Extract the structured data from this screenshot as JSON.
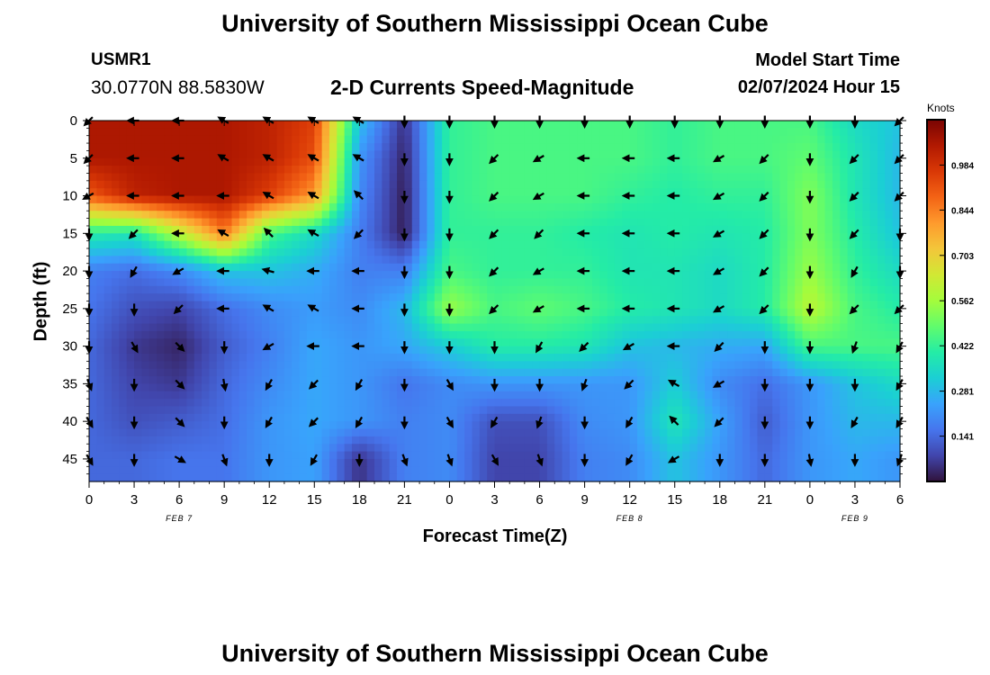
{
  "header": {
    "title": "University of Southern Mississippi Ocean Cube",
    "station_id": "USMR1",
    "station_coords": "30.0770N  88.5830W",
    "product_name": "2-D Currents Speed-Magnitude",
    "model_start_label": "Model Start Time",
    "model_start_value": "02/07/2024 Hour 15"
  },
  "footer": {
    "title_repeat": "University of Southern Mississippi Ocean Cube"
  },
  "chart_data": {
    "type": "heatmap",
    "title": "2-D Currents Speed-Magnitude",
    "xlabel": "Forecast Time(Z)",
    "ylabel": "Depth (ft)",
    "x_tick_labels": [
      "0",
      "3",
      "6",
      "9",
      "12",
      "15",
      "18",
      "21",
      "0",
      "3",
      "6",
      "9",
      "12",
      "15",
      "18",
      "21",
      "0",
      "3",
      "6"
    ],
    "x_range_hours": [
      0,
      54
    ],
    "date_labels": [
      {
        "label": "FEB 7",
        "hour": 6
      },
      {
        "label": "FEB 8",
        "hour": 36
      },
      {
        "label": "FEB 9",
        "hour": 51
      }
    ],
    "y_tick_labels": [
      "0",
      "5",
      "10",
      "15",
      "20",
      "25",
      "30",
      "35",
      "40",
      "45"
    ],
    "y_range_ft": [
      0,
      48
    ],
    "y_inverted": true,
    "colorbar": {
      "units": "Knots",
      "ticks": [
        "0.984",
        "0.844",
        "0.703",
        "0.562",
        "0.422",
        "0.281",
        "0.141"
      ],
      "range": [
        0,
        1.125
      ],
      "colors": [
        "#30123b",
        "#4145ab",
        "#4675ed",
        "#39a2fc",
        "#1bcfd4",
        "#24eca6",
        "#61fc6c",
        "#a4fc3c",
        "#d1e834",
        "#f3c63a",
        "#fe9b2d",
        "#f36315",
        "#d93806",
        "#b11901",
        "#7a0403"
      ]
    },
    "grid_hours": [
      0,
      3,
      6,
      9,
      12,
      15,
      18,
      21,
      24,
      27,
      30,
      33,
      36,
      39,
      42,
      45,
      48,
      51,
      54
    ],
    "grid_depths_ft": [
      0,
      5,
      10,
      15,
      20,
      25,
      30,
      35,
      40,
      45
    ],
    "speed_knots": [
      [
        1.05,
        1.05,
        1.05,
        1.05,
        1.02,
        0.95,
        0.3,
        0.05,
        0.42,
        0.45,
        0.45,
        0.45,
        0.45,
        0.42,
        0.45,
        0.45,
        0.45,
        0.35,
        0.3
      ],
      [
        1.05,
        1.05,
        1.05,
        1.05,
        1.02,
        0.92,
        0.22,
        0.03,
        0.42,
        0.45,
        0.45,
        0.45,
        0.45,
        0.42,
        0.45,
        0.45,
        0.48,
        0.38,
        0.28
      ],
      [
        0.9,
        1.02,
        1.05,
        1.05,
        0.95,
        0.8,
        0.2,
        0.02,
        0.42,
        0.45,
        0.45,
        0.45,
        0.42,
        0.4,
        0.42,
        0.42,
        0.52,
        0.38,
        0.28
      ],
      [
        0.4,
        0.38,
        0.6,
        0.85,
        0.45,
        0.35,
        0.18,
        0.02,
        0.42,
        0.42,
        0.42,
        0.4,
        0.38,
        0.4,
        0.38,
        0.4,
        0.52,
        0.4,
        0.3
      ],
      [
        0.18,
        0.15,
        0.2,
        0.3,
        0.3,
        0.26,
        0.18,
        0.18,
        0.45,
        0.42,
        0.42,
        0.42,
        0.38,
        0.38,
        0.35,
        0.4,
        0.55,
        0.42,
        0.35
      ],
      [
        0.16,
        0.1,
        0.08,
        0.15,
        0.2,
        0.23,
        0.2,
        0.28,
        0.55,
        0.45,
        0.48,
        0.45,
        0.4,
        0.38,
        0.35,
        0.4,
        0.6,
        0.45,
        0.4
      ],
      [
        0.14,
        0.06,
        0.03,
        0.12,
        0.18,
        0.25,
        0.22,
        0.25,
        0.32,
        0.4,
        0.4,
        0.38,
        0.3,
        0.28,
        0.26,
        0.25,
        0.45,
        0.45,
        0.45
      ],
      [
        0.14,
        0.08,
        0.06,
        0.14,
        0.2,
        0.25,
        0.22,
        0.16,
        0.2,
        0.22,
        0.22,
        0.22,
        0.22,
        0.32,
        0.2,
        0.15,
        0.22,
        0.3,
        0.35
      ],
      [
        0.14,
        0.1,
        0.12,
        0.15,
        0.22,
        0.25,
        0.22,
        0.18,
        0.2,
        0.1,
        0.1,
        0.2,
        0.22,
        0.38,
        0.24,
        0.12,
        0.22,
        0.28,
        0.28
      ],
      [
        0.14,
        0.14,
        0.16,
        0.16,
        0.22,
        0.24,
        0.05,
        0.18,
        0.2,
        0.08,
        0.08,
        0.18,
        0.2,
        0.3,
        0.22,
        0.14,
        0.22,
        0.25,
        0.22
      ]
    ],
    "direction_deg": [
      [
        225,
        270,
        270,
        300,
        300,
        300,
        300,
        180,
        180,
        180,
        180,
        180,
        180,
        180,
        180,
        180,
        180,
        180,
        225
      ],
      [
        225,
        270,
        270,
        300,
        300,
        300,
        300,
        180,
        180,
        225,
        240,
        270,
        270,
        270,
        240,
        225,
        180,
        225,
        225
      ],
      [
        240,
        270,
        270,
        270,
        300,
        300,
        315,
        180,
        180,
        225,
        240,
        270,
        270,
        270,
        240,
        225,
        180,
        225,
        225
      ],
      [
        180,
        225,
        270,
        300,
        315,
        300,
        225,
        180,
        180,
        225,
        225,
        270,
        270,
        270,
        240,
        225,
        180,
        225,
        180
      ],
      [
        180,
        210,
        240,
        270,
        285,
        270,
        270,
        180,
        180,
        225,
        240,
        270,
        270,
        270,
        240,
        225,
        180,
        210,
        180
      ],
      [
        180,
        180,
        225,
        270,
        300,
        300,
        270,
        180,
        180,
        225,
        240,
        270,
        270,
        270,
        240,
        225,
        180,
        225,
        225
      ],
      [
        180,
        150,
        135,
        180,
        240,
        270,
        270,
        180,
        180,
        180,
        210,
        225,
        240,
        270,
        225,
        180,
        180,
        200,
        210
      ],
      [
        160,
        180,
        135,
        170,
        210,
        225,
        210,
        180,
        150,
        180,
        180,
        200,
        225,
        300,
        240,
        180,
        180,
        180,
        210
      ],
      [
        150,
        180,
        135,
        180,
        210,
        225,
        210,
        180,
        150,
        210,
        200,
        180,
        210,
        315,
        225,
        180,
        180,
        210,
        210
      ],
      [
        150,
        180,
        120,
        160,
        180,
        210,
        180,
        160,
        160,
        150,
        160,
        180,
        210,
        240,
        180,
        180,
        170,
        180,
        200
      ]
    ]
  }
}
